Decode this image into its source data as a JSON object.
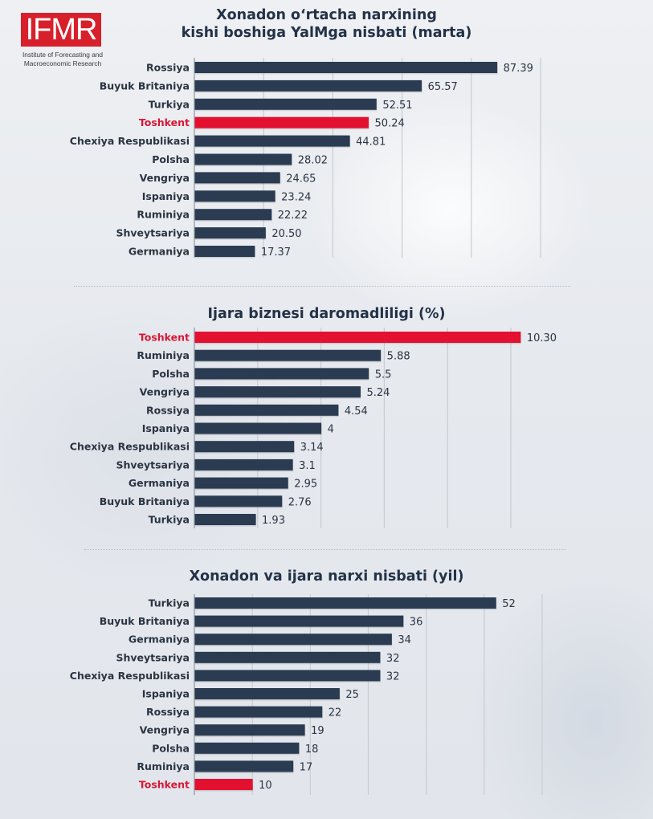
{
  "logo": {
    "mark": "IFMR",
    "subtitle_line1": "Institute of Forecasting and",
    "subtitle_line2": "Macroeconomic Research",
    "brand_color": "#d7202b"
  },
  "colors": {
    "bar_default": "#2a3b52",
    "bar_highlight": "#e4102f",
    "label_default": "#2b3442",
    "label_highlight": "#d91636",
    "gridline": "#c9cdd3"
  },
  "chart_data": [
    {
      "type": "bar",
      "orientation": "horizontal",
      "title_line1": "Xonadon o‘rtacha narxining",
      "title_line2": "kishi boshiga YalMga nisbati (marta)",
      "categories": [
        "Rossiya",
        "Buyuk Britaniya",
        "Turkiya",
        "Toshkent",
        "Chexiya Respublikasi",
        "Polsha",
        "Vengriya",
        "Ispaniya",
        "Ruminiya",
        "Shveytsariya",
        "Germaniya"
      ],
      "values": [
        87.39,
        65.57,
        52.51,
        50.24,
        44.81,
        28.02,
        24.65,
        23.24,
        22.22,
        20.5,
        17.37
      ],
      "value_labels": [
        "87.39",
        "65.57",
        "52.51",
        "50.24",
        "44.81",
        "28.02",
        "24.65",
        "23.24",
        "22.22",
        "20.50",
        "17.37"
      ],
      "highlight": "Toshkent",
      "xlim": [
        0,
        100
      ],
      "gridlines": [
        20,
        40,
        60,
        80,
        100
      ],
      "grid": true,
      "xlabel": "",
      "ylabel": ""
    },
    {
      "type": "bar",
      "orientation": "horizontal",
      "title_line1": "Ijara biznesi daromadliligi (%)",
      "title_line2": "",
      "categories": [
        "Toshkent",
        "Ruminiya",
        "Polsha",
        "Vengriya",
        "Rossiya",
        "Ispaniya",
        "Chexiya Respublikasi",
        "Shveytsariya",
        "Germaniya",
        "Buyuk Britaniya",
        "Turkiya"
      ],
      "values": [
        10.3,
        5.88,
        5.5,
        5.24,
        4.54,
        4,
        3.14,
        3.1,
        2.95,
        2.76,
        1.93
      ],
      "value_labels": [
        "10.30",
        "5.88",
        "5.5",
        "5.24",
        "4.54",
        "4",
        "3.14",
        "3.1",
        "2.95",
        "2.76",
        "1.93"
      ],
      "highlight": "Toshkent",
      "xlim": [
        0,
        10
      ],
      "gridlines": [
        2,
        4,
        6,
        8,
        10
      ],
      "grid": true,
      "xlabel": "",
      "ylabel": ""
    },
    {
      "type": "bar",
      "orientation": "horizontal",
      "title_line1": "Xonadon va ijara narxi nisbati (yil)",
      "title_line2": "",
      "categories": [
        "Turkiya",
        "Buyuk Britaniya",
        "Germaniya",
        "Shveytsariya",
        "Chexiya Respublikasi",
        "Ispaniya",
        "Rossiya",
        "Vengriya",
        "Polsha",
        "Ruminiya",
        "Toshkent"
      ],
      "values": [
        52,
        36,
        34,
        32,
        32,
        25,
        22,
        19,
        18,
        17,
        10
      ],
      "value_labels": [
        "52",
        "36",
        "34",
        "32",
        "32",
        "25",
        "22",
        "19",
        "18",
        "17",
        "10"
      ],
      "highlight": "Toshkent",
      "xlim": [
        0,
        60
      ],
      "gridlines": [
        10,
        20,
        30,
        40,
        50,
        60
      ],
      "grid": true,
      "xlabel": "",
      "ylabel": ""
    }
  ]
}
